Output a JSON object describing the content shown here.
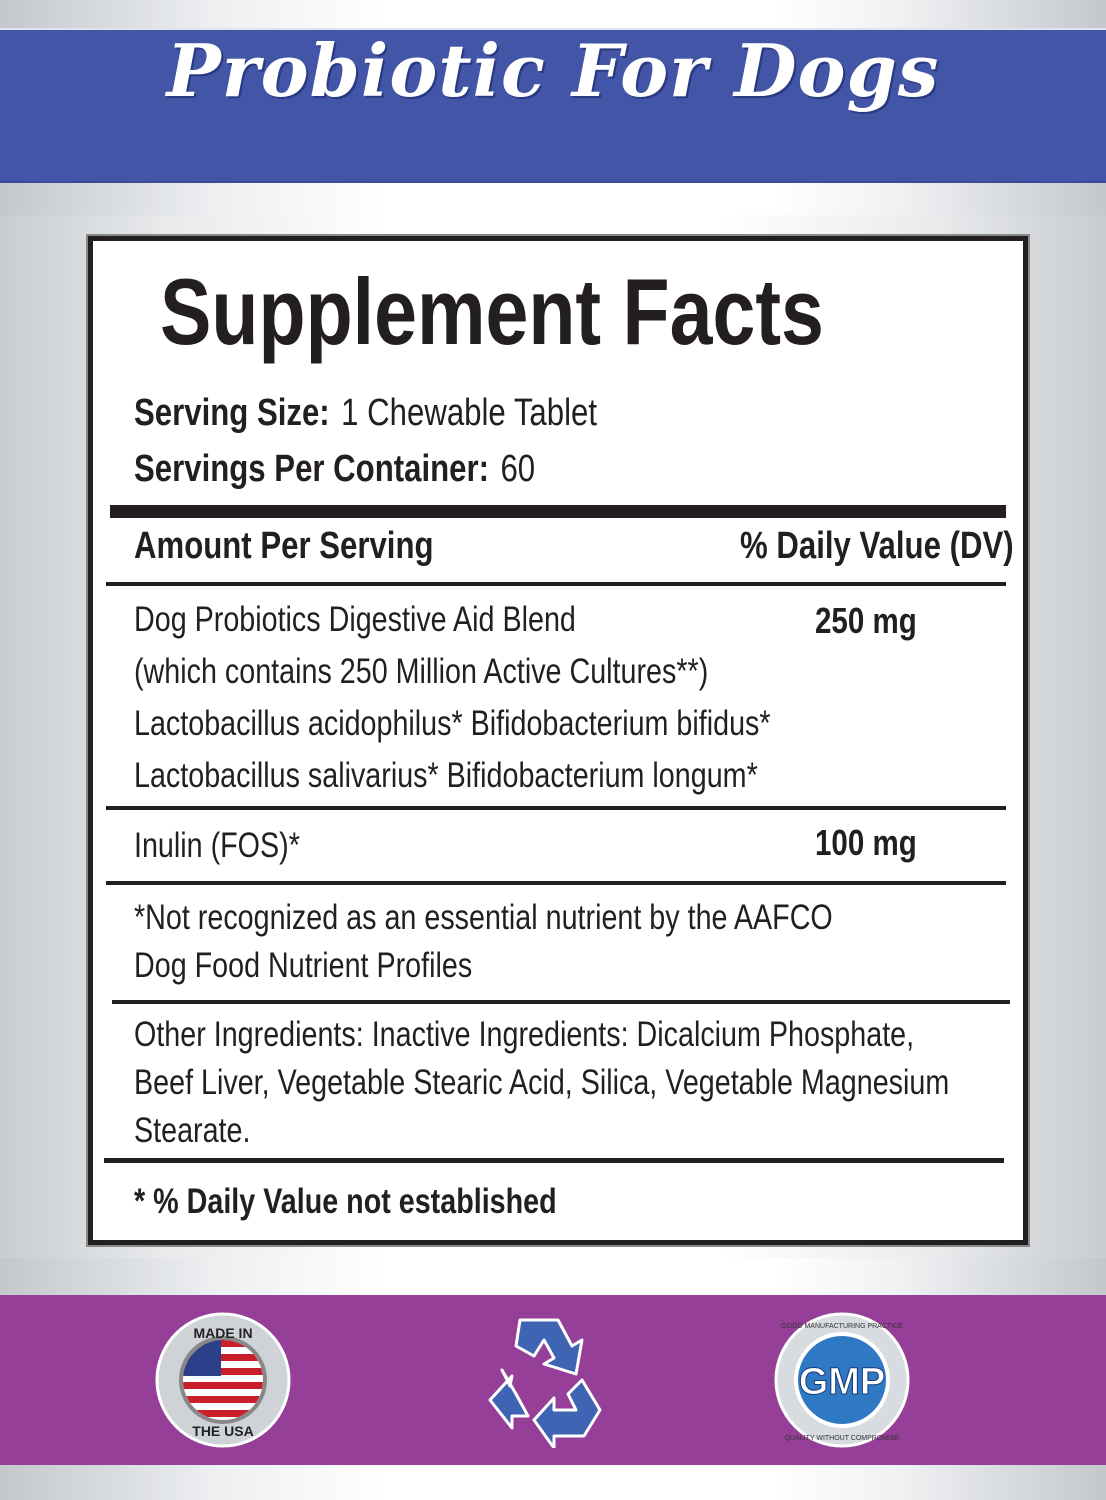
{
  "header": {
    "title": "Probiotic For Dogs",
    "band_color": "#4255a6"
  },
  "facts": {
    "heading": "Supplement Facts",
    "serving_size_label": "Serving Size:",
    "serving_size_value": "1 Chewable Tablet",
    "servings_label": "Servings Per Container:",
    "servings_value": "60",
    "col_amount": "Amount  Per Serving",
    "col_dv": "% Daily Value (DV)",
    "rows": [
      {
        "lines": [
          "Dog Probiotics Digestive Aid Blend",
          "(which contains 250 Million Active Cultures**)",
          "Lactobacillus acidophilus* Bifidobacterium bifidus*",
          "Lactobacillus salivarius* Bifidobacterium longum*"
        ],
        "amount": "250 mg"
      },
      {
        "lines": [
          "Inulin (FOS)*"
        ],
        "amount": "100 mg"
      }
    ],
    "note": [
      "*Not recognized as an essential nutrient by the AAFCO",
      "Dog Food Nutrient Profiles"
    ],
    "other": [
      "Other Ingredients: Inactive Ingredients: Dicalcium Phosphate,",
      "Beef Liver, Vegetable Stearic Acid, Silica, Vegetable Magnesium",
      "Stearate."
    ],
    "footer": "* % Daily Value not established"
  },
  "badges": {
    "usa": {
      "icon": "made-in-usa-seal-icon",
      "top": "MADE IN",
      "bottom": "THE USA"
    },
    "recycle": {
      "icon": "recycle-icon",
      "color": "#3f64b3"
    },
    "gmp": {
      "icon": "gmp-seal-icon",
      "text": "GMP",
      "ring_top": "GOOD MANUFACTURING PRACTICE",
      "ring_bottom": "QUALITY WITHOUT COMPROMISE"
    },
    "band_color": "#963f99"
  }
}
